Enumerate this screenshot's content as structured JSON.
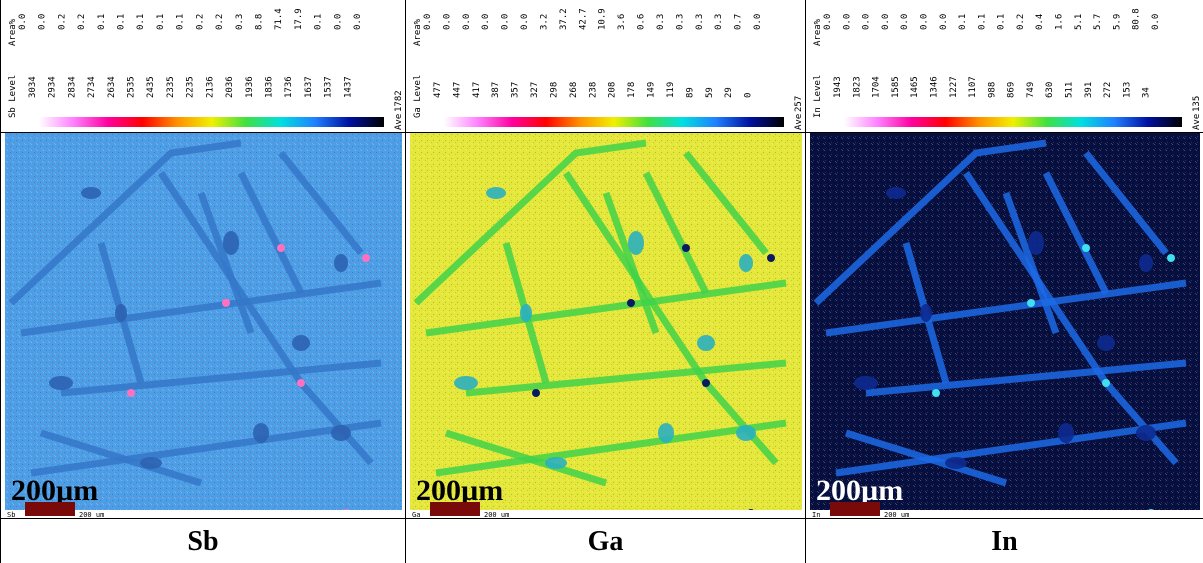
{
  "panels": [
    {
      "level_label": "Sb Level",
      "area_label": "Area%",
      "levels": [
        "3034",
        "2934",
        "2834",
        "2734",
        "2634",
        "2535",
        "2435",
        "2335",
        "2235",
        "2136",
        "2036",
        "1936",
        "1836",
        "1736",
        "1637",
        "1537",
        "1437"
      ],
      "areas": [
        "0.0",
        "0.0",
        "0.2",
        "0.2",
        "0.1",
        "0.1",
        "0.1",
        "0.1",
        "0.1",
        "0.2",
        "0.2",
        "0.3",
        "8.8",
        "71.4",
        "17.9",
        "0.1",
        "0.0",
        "0.0"
      ],
      "ave_label": "Ave",
      "ave": "1782",
      "map_tag": "Sb",
      "scale_bar_label": "200 um",
      "scale_text": "200µm",
      "caption": "Sb"
    },
    {
      "level_label": "Ga Level",
      "area_label": "Area%",
      "levels": [
        "477",
        "447",
        "417",
        "387",
        "357",
        "327",
        "298",
        "268",
        "238",
        "208",
        "178",
        "149",
        "119",
        "89",
        "59",
        "29",
        "0"
      ],
      "areas": [
        "0.0",
        "0.0",
        "0.0",
        "0.0",
        "0.0",
        "0.0",
        "3.2",
        "37.2",
        "42.7",
        "10.9",
        "3.6",
        "0.6",
        "0.3",
        "0.3",
        "0.3",
        "0.3",
        "0.7",
        "0.0"
      ],
      "ave_label": "Ave",
      "ave": "257",
      "map_tag": "Ga",
      "scale_bar_label": "200 um",
      "scale_text": "200µm",
      "caption": "Ga"
    },
    {
      "level_label": "In Level",
      "area_label": "Area%",
      "levels": [
        "1943",
        "1823",
        "1704",
        "1585",
        "1465",
        "1346",
        "1227",
        "1107",
        "988",
        "869",
        "749",
        "630",
        "511",
        "391",
        "272",
        "153",
        "34"
      ],
      "areas": [
        "0.0",
        "0.0",
        "0.0",
        "0.0",
        "0.0",
        "0.0",
        "0.0",
        "0.1",
        "0.1",
        "0.1",
        "0.2",
        "0.4",
        "1.6",
        "5.1",
        "5.7",
        "5.9",
        "80.8",
        "0.0"
      ],
      "ave_label": "Ave",
      "ave": "135",
      "map_tag": "In",
      "scale_bar_label": "200 um",
      "scale_text": "200µm",
      "caption": "In"
    }
  ]
}
